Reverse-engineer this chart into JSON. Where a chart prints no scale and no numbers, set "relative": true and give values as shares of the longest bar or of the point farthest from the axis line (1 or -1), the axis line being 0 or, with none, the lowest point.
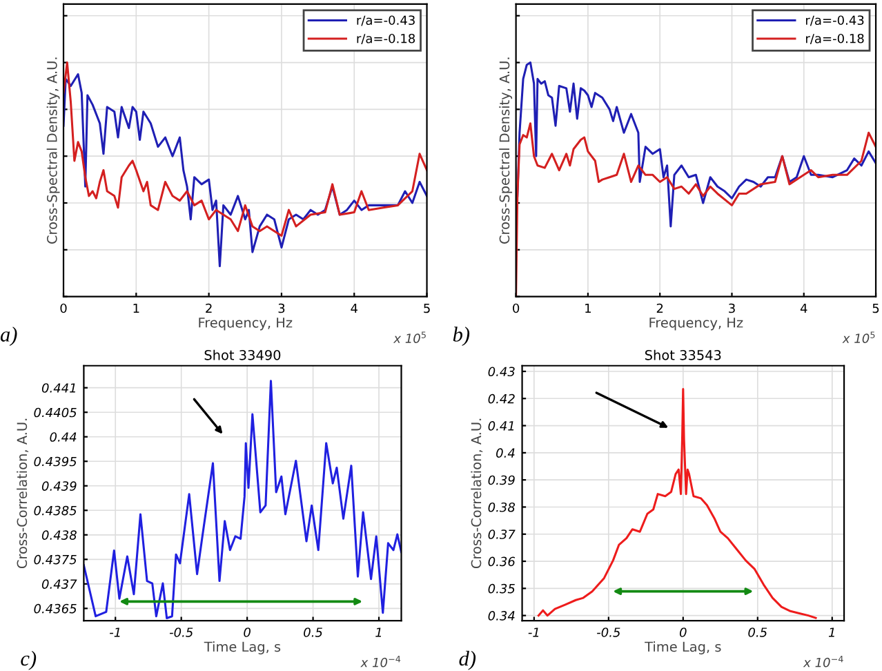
{
  "chart_data": [
    {
      "type": "line",
      "relative": true,
      "xlabel": "Frequency, Hz",
      "ylabel": "Cross-Spectral Density, A.U.",
      "xlim": [
        0,
        5
      ],
      "xticks": [
        0,
        1,
        2,
        3,
        4,
        5
      ],
      "grid": true,
      "legend": "top right",
      "annotations": [
        "x 10$^{5}$",
        "a)"
      ],
      "series": [
        {
          "name": "r/a=-0.43",
          "color": "#1f1fb4",
          "x": [
            0,
            0.03,
            0.1,
            0.2,
            0.25,
            0.3,
            0.33,
            0.4,
            0.5,
            0.55,
            0.6,
            0.7,
            0.75,
            0.8,
            0.9,
            0.95,
            1.0,
            1.05,
            1.1,
            1.2,
            1.3,
            1.4,
            1.5,
            1.6,
            1.65,
            1.7,
            1.75,
            1.8,
            1.9,
            2.0,
            2.05,
            2.1,
            2.15,
            2.2,
            2.3,
            2.4,
            2.5,
            2.55,
            2.6,
            2.7,
            2.8,
            2.9,
            3.0,
            3.1,
            3.2,
            3.3,
            3.4,
            3.5,
            3.6,
            3.7,
            3.8,
            3.9,
            4.0,
            4.1,
            4.2,
            4.4,
            4.6,
            4.7,
            4.8,
            4.9,
            5.0
          ],
          "values": [
            0.73,
            0.93,
            0.9,
            0.95,
            0.87,
            0.47,
            0.86,
            0.82,
            0.74,
            0.61,
            0.81,
            0.79,
            0.68,
            0.81,
            0.72,
            0.81,
            0.79,
            0.67,
            0.79,
            0.74,
            0.64,
            0.68,
            0.6,
            0.68,
            0.54,
            0.47,
            0.33,
            0.51,
            0.48,
            0.5,
            0.37,
            0.41,
            0.13,
            0.39,
            0.35,
            0.43,
            0.33,
            0.37,
            0.19,
            0.3,
            0.35,
            0.33,
            0.21,
            0.33,
            0.35,
            0.33,
            0.37,
            0.35,
            0.37,
            0.47,
            0.35,
            0.37,
            0.41,
            0.37,
            0.39,
            0.39,
            0.39,
            0.45,
            0.4,
            0.49,
            0.43
          ]
        },
        {
          "name": "r/a=-0.18",
          "color": "#d42020",
          "x": [
            0,
            0.05,
            0.1,
            0.15,
            0.2,
            0.25,
            0.3,
            0.35,
            0.4,
            0.45,
            0.5,
            0.55,
            0.6,
            0.7,
            0.75,
            0.8,
            0.9,
            0.95,
            1.0,
            1.1,
            1.15,
            1.2,
            1.3,
            1.4,
            1.5,
            1.6,
            1.7,
            1.8,
            1.9,
            2.0,
            2.1,
            2.2,
            2.3,
            2.4,
            2.5,
            2.6,
            2.7,
            2.8,
            3.0,
            3.1,
            3.2,
            3.4,
            3.6,
            3.7,
            3.8,
            4.0,
            4.1,
            4.2,
            4.4,
            4.6,
            4.8,
            4.9,
            5.0
          ],
          "values": [
            0.87,
            1.0,
            0.83,
            0.58,
            0.66,
            0.62,
            0.51,
            0.43,
            0.45,
            0.42,
            0.49,
            0.54,
            0.45,
            0.43,
            0.38,
            0.51,
            0.56,
            0.58,
            0.54,
            0.45,
            0.49,
            0.39,
            0.37,
            0.49,
            0.43,
            0.41,
            0.45,
            0.39,
            0.41,
            0.33,
            0.37,
            0.35,
            0.33,
            0.28,
            0.39,
            0.3,
            0.28,
            0.3,
            0.26,
            0.37,
            0.3,
            0.35,
            0.36,
            0.48,
            0.35,
            0.36,
            0.45,
            0.37,
            0.38,
            0.39,
            0.45,
            0.61,
            0.54
          ]
        }
      ]
    },
    {
      "type": "line",
      "relative": true,
      "xlabel": "Frequency, Hz",
      "ylabel": "Cross-Spectral Density, A.U.",
      "xlim": [
        0,
        5
      ],
      "xticks": [
        0,
        1,
        2,
        3,
        4,
        5
      ],
      "grid": true,
      "legend": "top right",
      "annotations": [
        "x 10$^{5}$",
        "b)"
      ],
      "series": [
        {
          "name": "r/a=-0.43",
          "color": "#1f1fb4",
          "x": [
            0.02,
            0.05,
            0.1,
            0.15,
            0.2,
            0.25,
            0.28,
            0.3,
            0.35,
            0.4,
            0.45,
            0.5,
            0.55,
            0.6,
            0.7,
            0.75,
            0.8,
            0.85,
            0.9,
            0.95,
            1.0,
            1.05,
            1.1,
            1.2,
            1.3,
            1.35,
            1.4,
            1.5,
            1.6,
            1.7,
            1.72,
            1.8,
            1.9,
            2.0,
            2.05,
            2.1,
            2.15,
            2.2,
            2.3,
            2.4,
            2.5,
            2.6,
            2.7,
            2.8,
            2.9,
            3.0,
            3.1,
            3.2,
            3.3,
            3.4,
            3.5,
            3.6,
            3.7,
            3.8,
            3.9,
            4.0,
            4.1,
            4.2,
            4.4,
            4.6,
            4.7,
            4.8,
            4.9,
            5.0
          ],
          "values": [
            0.43,
            0.7,
            0.93,
            0.99,
            1.0,
            0.91,
            0.6,
            0.93,
            0.91,
            0.92,
            0.86,
            0.85,
            0.73,
            0.9,
            0.89,
            0.79,
            0.91,
            0.76,
            0.89,
            0.88,
            0.86,
            0.81,
            0.87,
            0.85,
            0.8,
            0.75,
            0.81,
            0.7,
            0.78,
            0.7,
            0.49,
            0.64,
            0.61,
            0.63,
            0.51,
            0.56,
            0.3,
            0.52,
            0.56,
            0.51,
            0.52,
            0.4,
            0.51,
            0.47,
            0.45,
            0.42,
            0.47,
            0.5,
            0.49,
            0.47,
            0.51,
            0.51,
            0.6,
            0.49,
            0.51,
            0.6,
            0.52,
            0.52,
            0.51,
            0.54,
            0.59,
            0.56,
            0.62,
            0.57
          ]
        },
        {
          "name": "r/a=-0.18",
          "color": "#d42020",
          "x": [
            0.0,
            0.02,
            0.05,
            0.1,
            0.15,
            0.2,
            0.25,
            0.3,
            0.4,
            0.5,
            0.6,
            0.7,
            0.75,
            0.8,
            0.9,
            0.95,
            1.0,
            1.1,
            1.15,
            1.2,
            1.3,
            1.4,
            1.5,
            1.6,
            1.7,
            1.8,
            1.9,
            2.0,
            2.1,
            2.2,
            2.3,
            2.4,
            2.5,
            2.6,
            2.7,
            2.8,
            3.0,
            3.1,
            3.2,
            3.4,
            3.6,
            3.7,
            3.8,
            4.0,
            4.1,
            4.2,
            4.4,
            4.6,
            4.8,
            4.9,
            5.0
          ],
          "values": [
            0.0,
            0.43,
            0.65,
            0.69,
            0.68,
            0.74,
            0.6,
            0.56,
            0.55,
            0.61,
            0.54,
            0.61,
            0.56,
            0.63,
            0.67,
            0.68,
            0.62,
            0.58,
            0.49,
            0.5,
            0.51,
            0.52,
            0.61,
            0.49,
            0.56,
            0.52,
            0.52,
            0.49,
            0.51,
            0.46,
            0.47,
            0.44,
            0.48,
            0.43,
            0.47,
            0.44,
            0.39,
            0.44,
            0.44,
            0.48,
            0.49,
            0.6,
            0.48,
            0.52,
            0.54,
            0.51,
            0.52,
            0.52,
            0.58,
            0.7,
            0.64
          ]
        }
      ]
    },
    {
      "type": "line",
      "title": "Shot 33490",
      "xlabel": "Time Lag, s",
      "ylabel": "Cross-Correlation, A.U.",
      "xlim": [
        -1.24,
        1.17
      ],
      "xticks": [
        -1,
        -0.5,
        0,
        0.5,
        1
      ],
      "ylim": [
        0.43625,
        0.44145
      ],
      "yticks": [
        0.4365,
        0.437,
        0.4375,
        0.438,
        0.4385,
        0.439,
        0.4395,
        0.44,
        0.4405,
        0.441
      ],
      "grid": true,
      "annotations": [
        "x 10$^{−4}$",
        "c)"
      ],
      "series": [
        {
          "color": "#2020e0",
          "x": [
            -1.24,
            -1.15,
            -1.07,
            -1.01,
            -0.97,
            -0.91,
            -0.86,
            -0.81,
            -0.76,
            -0.72,
            -0.69,
            -0.64,
            -0.61,
            -0.57,
            -0.54,
            -0.51,
            -0.44,
            -0.38,
            -0.34,
            -0.26,
            -0.21,
            -0.17,
            -0.13,
            -0.09,
            -0.05,
            -0.02,
            -0.01,
            0.01,
            0.04,
            0.1,
            0.14,
            0.18,
            0.22,
            0.26,
            0.29,
            0.37,
            0.45,
            0.49,
            0.54,
            0.6,
            0.65,
            0.68,
            0.73,
            0.79,
            0.84,
            0.88,
            0.94,
            0.98,
            1.03,
            1.07,
            1.11,
            1.14,
            1.17
          ],
          "values": [
            0.43738,
            0.43634,
            0.43643,
            0.43768,
            0.4367,
            0.43756,
            0.43679,
            0.43842,
            0.43706,
            0.43701,
            0.43634,
            0.43701,
            0.4363,
            0.43634,
            0.4376,
            0.43742,
            0.43883,
            0.4372,
            0.43797,
            0.43946,
            0.43706,
            0.43828,
            0.43769,
            0.43797,
            0.43792,
            0.43878,
            0.43987,
            0.43896,
            0.44046,
            0.43846,
            0.4386,
            0.44114,
            0.43887,
            0.43919,
            0.43842,
            0.43951,
            0.43787,
            0.4386,
            0.43769,
            0.43987,
            0.43905,
            0.43937,
            0.43833,
            0.43941,
            0.43715,
            0.43846,
            0.4371,
            0.43797,
            0.43641,
            0.43783,
            0.43769,
            0.43801,
            0.43765
          ]
        }
      ]
    },
    {
      "type": "line",
      "title": "Shot 33543",
      "xlabel": "Time Lag, s",
      "ylabel": "Cross-Correlation, A.U.",
      "xlim": [
        -1.08,
        1.08
      ],
      "xticks": [
        -1,
        -0.5,
        0,
        0.5,
        1
      ],
      "ylim": [
        0.3381,
        0.4321
      ],
      "yticks": [
        0.34,
        0.35,
        0.36,
        0.37,
        0.38,
        0.39,
        0.4,
        0.41,
        0.42,
        0.43
      ],
      "grid": true,
      "annotations": [
        "x 10$^{−4}$",
        "d)"
      ],
      "series": [
        {
          "color": "#ee1c1c",
          "x": [
            -0.97,
            -0.94,
            -0.91,
            -0.86,
            -0.79,
            -0.72,
            -0.67,
            -0.61,
            -0.53,
            -0.47,
            -0.43,
            -0.38,
            -0.34,
            -0.29,
            -0.24,
            -0.2,
            -0.17,
            -0.12,
            -0.08,
            -0.05,
            -0.03,
            -0.015,
            -0.006,
            0.0,
            0.006,
            0.02,
            0.03,
            0.04,
            0.07,
            0.12,
            0.16,
            0.21,
            0.25,
            0.3,
            0.36,
            0.42,
            0.48,
            0.54,
            0.6,
            0.66,
            0.72,
            0.78,
            0.84,
            0.89
          ],
          "values": [
            0.34,
            0.3419,
            0.34,
            0.3424,
            0.344,
            0.3457,
            0.3465,
            0.3489,
            0.3538,
            0.3603,
            0.3661,
            0.3685,
            0.3718,
            0.3709,
            0.3775,
            0.3791,
            0.3848,
            0.384,
            0.3856,
            0.3922,
            0.3938,
            0.3848,
            0.4052,
            0.4235,
            0.4052,
            0.3848,
            0.3938,
            0.3922,
            0.384,
            0.3832,
            0.3807,
            0.3758,
            0.3709,
            0.3685,
            0.3644,
            0.3603,
            0.3571,
            0.3514,
            0.3465,
            0.3432,
            0.3416,
            0.3408,
            0.34,
            0.3391
          ]
        }
      ]
    }
  ]
}
